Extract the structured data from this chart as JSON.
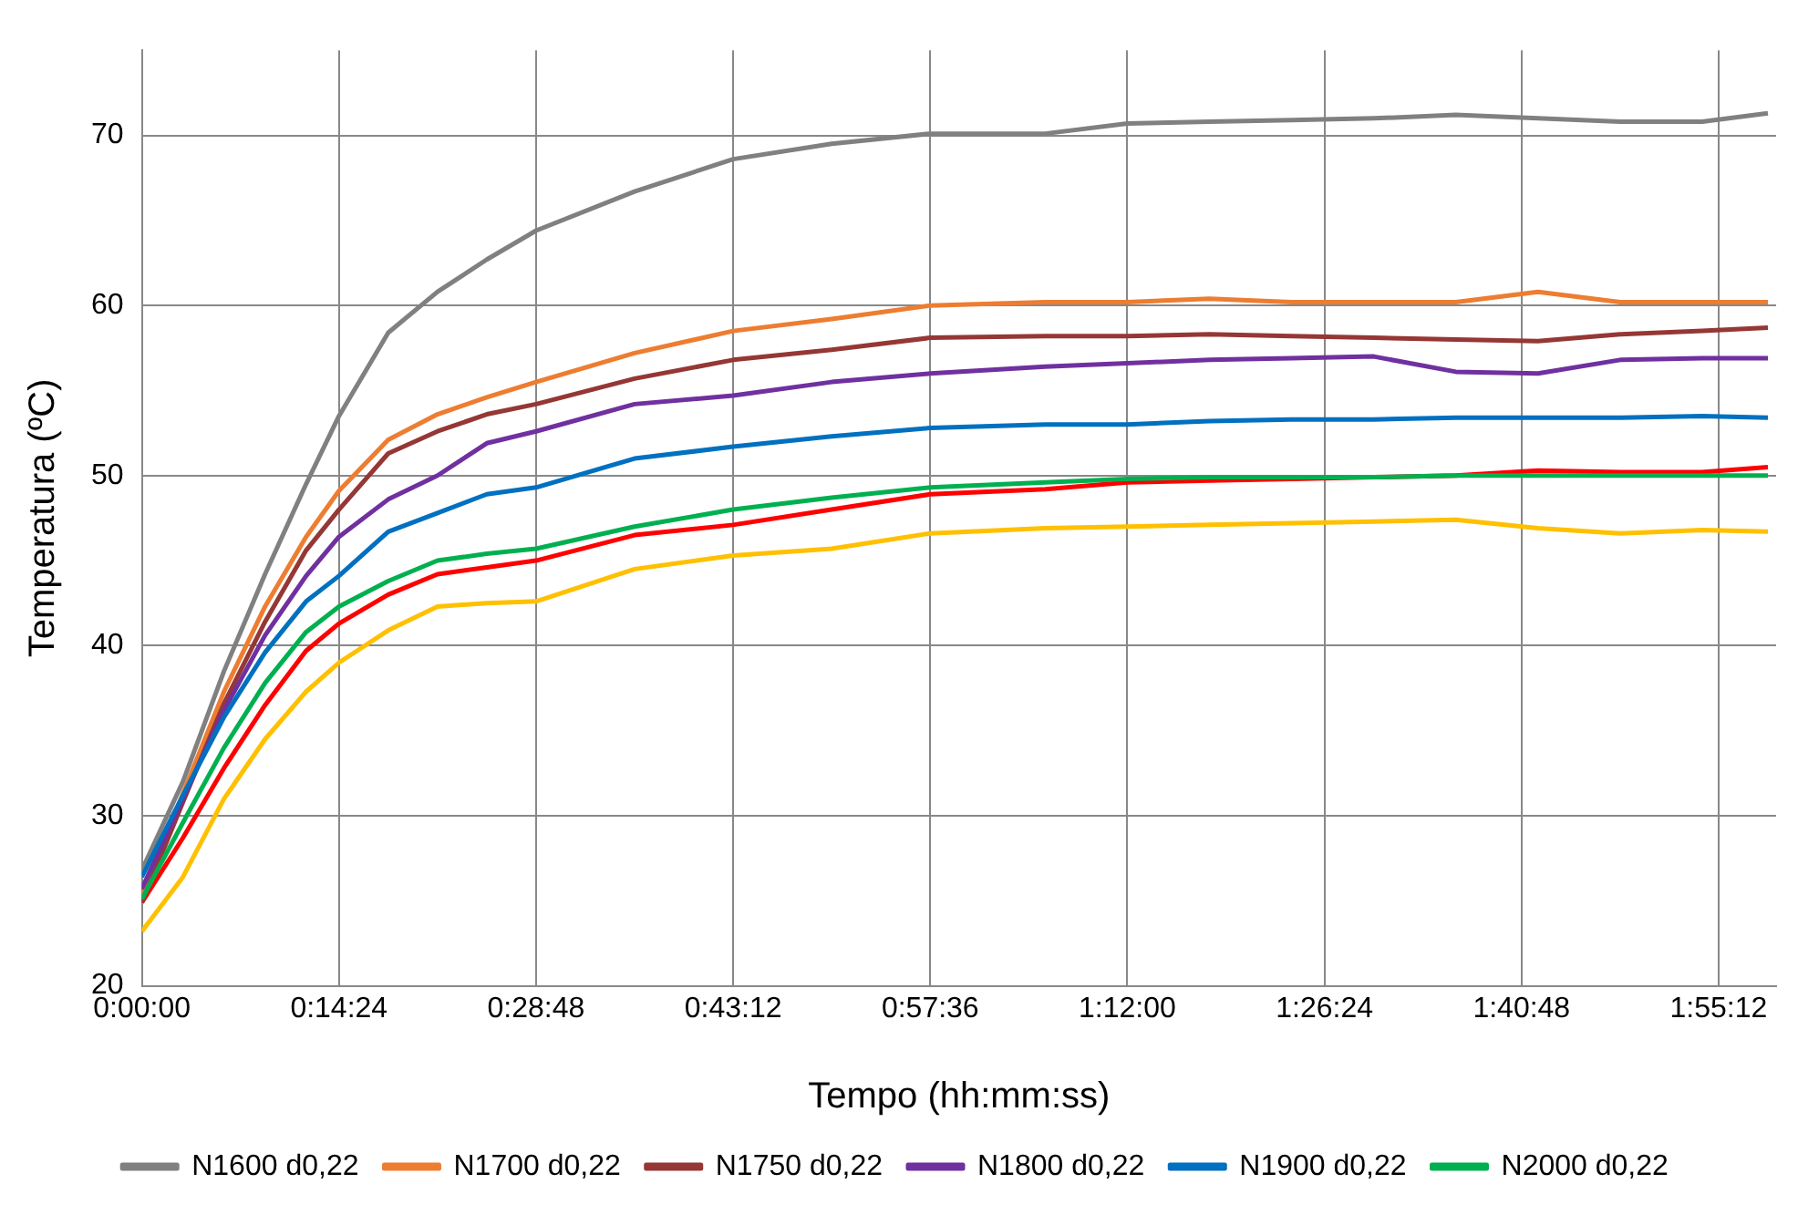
{
  "chart_data": {
    "type": "line",
    "xlabel": "Tempo (hh:mm:ss)",
    "ylabel": "Temperatura (ºC)",
    "x": [
      0,
      0.05,
      0.1,
      0.15,
      0.2,
      0.24,
      0.3,
      0.36,
      0.42,
      0.48,
      0.6,
      0.72,
      0.84,
      0.96,
      1.1,
      1.2,
      1.3,
      1.4,
      1.5,
      1.6,
      1.7,
      1.8,
      1.9,
      1.98
    ],
    "xlim": [
      0,
      1.99
    ],
    "xticks": [
      {
        "value": 0,
        "label": "0:00:00"
      },
      {
        "value": 0.24,
        "label": "0:14:24"
      },
      {
        "value": 0.48,
        "label": "0:28:48"
      },
      {
        "value": 0.72,
        "label": "0:43:12"
      },
      {
        "value": 0.96,
        "label": "0:57:36"
      },
      {
        "value": 1.2,
        "label": "1:12:00"
      },
      {
        "value": 1.44,
        "label": "1:26:24"
      },
      {
        "value": 1.68,
        "label": "1:40:48"
      },
      {
        "value": 1.92,
        "label": "1:55:12"
      }
    ],
    "ylim": [
      20,
      75
    ],
    "yticks": [
      20,
      30,
      40,
      50,
      60,
      70
    ],
    "grid": true,
    "legend": "bottom",
    "marker": "none",
    "line_style": "solid",
    "series": [
      {
        "color": "#ff0000",
        "values": [
          24.9,
          28.7,
          32.8,
          36.5,
          39.7,
          41.3,
          43.0,
          44.2,
          44.6,
          45.0,
          46.5,
          47.1,
          48.0,
          48.9,
          49.2,
          49.6,
          49.7,
          49.8,
          49.9,
          50.0,
          50.3,
          50.2,
          50.2,
          50.5
        ]
      },
      {
        "color": "#ffc000",
        "values": [
          23.2,
          26.4,
          31.0,
          34.5,
          37.3,
          39.0,
          40.9,
          42.3,
          42.5,
          42.6,
          44.5,
          45.3,
          45.7,
          46.6,
          46.9,
          47.0,
          47.1,
          47.2,
          47.3,
          47.4,
          46.9,
          46.6,
          46.8,
          46.7
        ]
      },
      {
        "name": "N1600 d0,22",
        "color": "#808080",
        "values": [
          26.8,
          32.0,
          38.5,
          44.2,
          49.5,
          53.5,
          58.4,
          60.8,
          62.7,
          64.4,
          66.7,
          68.6,
          69.5,
          70.1,
          70.1,
          70.7,
          70.8,
          70.9,
          71.0,
          71.2,
          71.0,
          70.8,
          70.8,
          71.3
        ]
      },
      {
        "name": "N1700 d0,22",
        "color": "#ed7d31",
        "values": [
          25.2,
          31.3,
          37.3,
          42.3,
          46.4,
          49.1,
          52.1,
          53.6,
          54.6,
          55.5,
          57.2,
          58.5,
          59.2,
          60.0,
          60.2,
          60.2,
          60.4,
          60.2,
          60.2,
          60.2,
          60.8,
          60.2,
          60.2,
          60.2
        ]
      },
      {
        "name": "N1750 d0,22",
        "color": "#953735",
        "values": [
          24.9,
          30.8,
          36.6,
          41.4,
          45.6,
          48.0,
          51.3,
          52.6,
          53.6,
          54.2,
          55.7,
          56.8,
          57.4,
          58.1,
          58.2,
          58.2,
          58.3,
          58.2,
          58.1,
          58.0,
          57.9,
          58.3,
          58.5,
          58.7
        ]
      },
      {
        "name": "N1800 d0,22",
        "color": "#7030a0",
        "values": [
          25.7,
          31.0,
          36.2,
          40.6,
          44.1,
          46.4,
          48.6,
          50.0,
          51.9,
          52.6,
          54.2,
          54.7,
          55.5,
          56.0,
          56.4,
          56.6,
          56.8,
          56.9,
          57.0,
          56.1,
          56.0,
          56.8,
          56.9,
          56.9
        ]
      },
      {
        "name": "N1900 d0,22",
        "color": "#0070c0",
        "values": [
          26.4,
          31.2,
          35.8,
          39.6,
          42.6,
          44.1,
          46.7,
          47.8,
          48.9,
          49.3,
          51.0,
          51.7,
          52.3,
          52.8,
          53.0,
          53.0,
          53.2,
          53.3,
          53.3,
          53.4,
          53.4,
          53.4,
          53.5,
          53.4
        ]
      },
      {
        "name": "N2000 d0,22",
        "color": "#00b050",
        "values": [
          25.1,
          29.6,
          34.0,
          37.8,
          40.8,
          42.3,
          43.8,
          45.0,
          45.4,
          45.7,
          47.0,
          48.0,
          48.7,
          49.3,
          49.6,
          49.8,
          49.9,
          49.9,
          49.9,
          50.0,
          50.0,
          50.0,
          50.0,
          50.0
        ]
      }
    ]
  }
}
